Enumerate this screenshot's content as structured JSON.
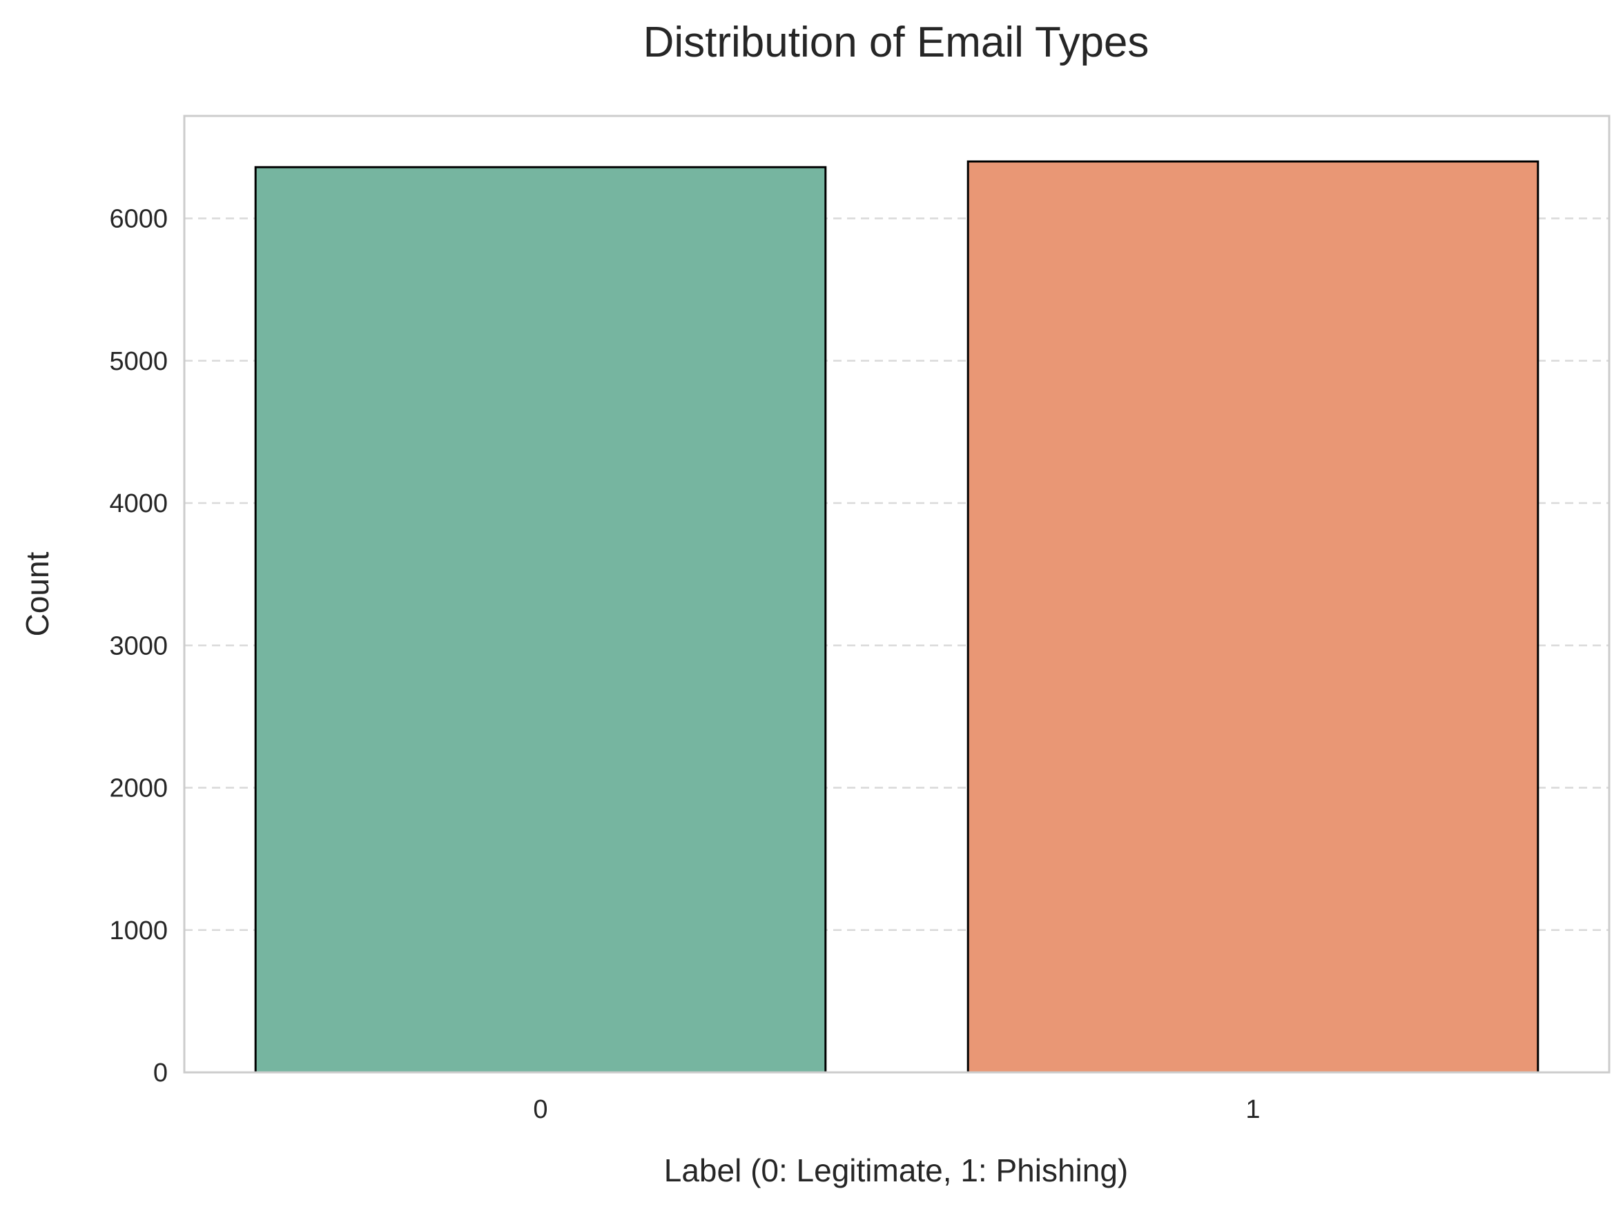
{
  "chart_data": {
    "type": "bar",
    "title": "Distribution of Email Types",
    "xlabel": "Label (0: Legitimate, 1: Phishing)",
    "ylabel": "Count",
    "categories": [
      "0",
      "1"
    ],
    "values": [
      6360,
      6400
    ],
    "colors": [
      "#76b5a0",
      "#e99775"
    ],
    "ylim": [
      0,
      6720
    ],
    "yticks": [
      0,
      1000,
      2000,
      3000,
      4000,
      5000,
      6000
    ],
    "grid": "y dashed",
    "legend": "none"
  },
  "style": {
    "bar_edge_color": "#000000",
    "spine_color": "#cccccc",
    "grid_color": "#d9d9d9",
    "text_color": "#262626"
  }
}
